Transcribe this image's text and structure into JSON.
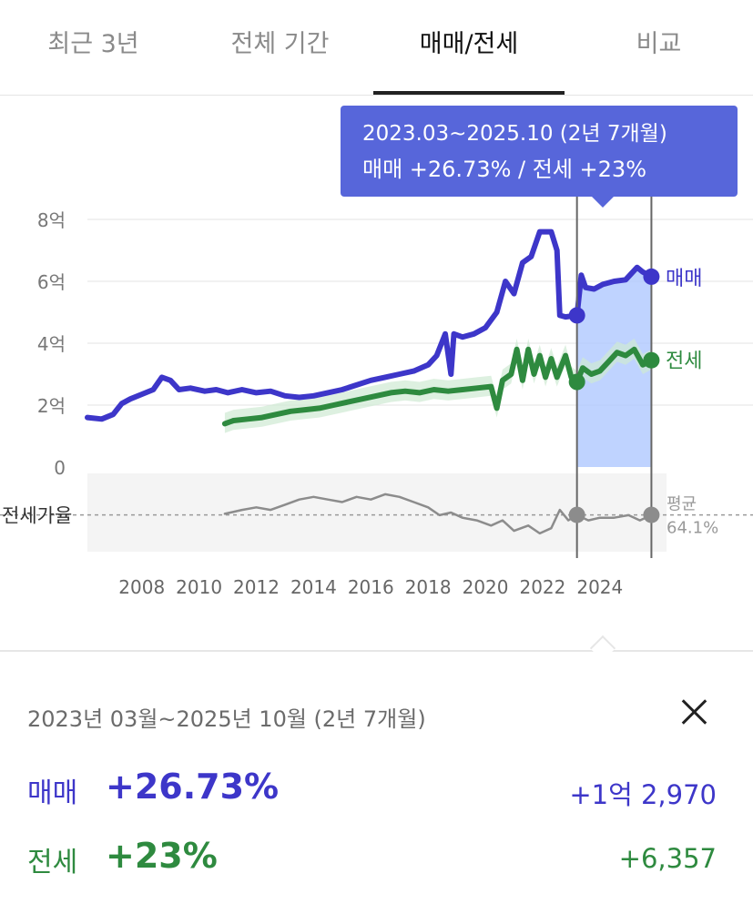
{
  "tabs": [
    {
      "label": "최근 3년",
      "active": false
    },
    {
      "label": "전체 기간",
      "active": false
    },
    {
      "label": "매매/전세",
      "active": true
    },
    {
      "label": "비교",
      "active": false
    }
  ],
  "tooltip": {
    "range": "2023.03~2025.10 (2년 7개월)",
    "summary": "매매 +26.73%  /  전세 +23%"
  },
  "chart_data": {
    "type": "line",
    "y_ticks": [
      "8억",
      "6억",
      "4억",
      "2억",
      "0"
    ],
    "x_ticks": [
      "2008",
      "2010",
      "2012",
      "2014",
      "2016",
      "2018",
      "2020",
      "2022",
      "2024"
    ],
    "ylim": [
      0,
      8
    ],
    "xlim": [
      2006.1,
      2026.2
    ],
    "selection": {
      "start": 2023.2,
      "end": 2025.8
    },
    "colors": {
      "sale": "#3d36c9",
      "jeonse": "#2e8a3f",
      "ratio": "#8c8c8c",
      "selection_fill": "#a9c4ff"
    },
    "series": [
      {
        "name": "매매",
        "points": [
          [
            2006.1,
            1.6
          ],
          [
            2006.6,
            1.55
          ],
          [
            2007.0,
            1.7
          ],
          [
            2007.3,
            2.05
          ],
          [
            2007.6,
            2.2
          ],
          [
            2008.0,
            2.35
          ],
          [
            2008.4,
            2.5
          ],
          [
            2008.7,
            2.9
          ],
          [
            2009.0,
            2.8
          ],
          [
            2009.3,
            2.5
          ],
          [
            2009.7,
            2.55
          ],
          [
            2010.2,
            2.45
          ],
          [
            2010.6,
            2.5
          ],
          [
            2011.0,
            2.4
          ],
          [
            2011.5,
            2.5
          ],
          [
            2012.0,
            2.4
          ],
          [
            2012.5,
            2.45
          ],
          [
            2013.0,
            2.3
          ],
          [
            2013.5,
            2.25
          ],
          [
            2014.0,
            2.3
          ],
          [
            2014.5,
            2.4
          ],
          [
            2015.0,
            2.5
          ],
          [
            2015.5,
            2.65
          ],
          [
            2016.0,
            2.8
          ],
          [
            2016.5,
            2.9
          ],
          [
            2017.0,
            3.0
          ],
          [
            2017.5,
            3.1
          ],
          [
            2018.0,
            3.3
          ],
          [
            2018.3,
            3.6
          ],
          [
            2018.6,
            4.3
          ],
          [
            2018.8,
            3.0
          ],
          [
            2018.9,
            4.3
          ],
          [
            2019.2,
            4.2
          ],
          [
            2019.6,
            4.3
          ],
          [
            2020.0,
            4.5
          ],
          [
            2020.4,
            5.0
          ],
          [
            2020.7,
            6.0
          ],
          [
            2021.0,
            5.6
          ],
          [
            2021.3,
            6.6
          ],
          [
            2021.6,
            6.8
          ],
          [
            2021.9,
            7.6
          ],
          [
            2022.3,
            7.6
          ],
          [
            2022.5,
            7.0
          ],
          [
            2022.6,
            4.9
          ],
          [
            2022.8,
            4.85
          ],
          [
            2023.2,
            4.9
          ],
          [
            2023.35,
            6.2
          ],
          [
            2023.5,
            5.8
          ],
          [
            2023.8,
            5.75
          ],
          [
            2024.1,
            5.9
          ],
          [
            2024.5,
            6.0
          ],
          [
            2024.9,
            6.05
          ],
          [
            2025.3,
            6.45
          ],
          [
            2025.5,
            6.3
          ],
          [
            2025.8,
            6.15
          ]
        ]
      },
      {
        "name": "전세",
        "points": [
          [
            2010.9,
            1.4
          ],
          [
            2011.2,
            1.5
          ],
          [
            2011.7,
            1.55
          ],
          [
            2012.2,
            1.6
          ],
          [
            2012.7,
            1.7
          ],
          [
            2013.2,
            1.8
          ],
          [
            2013.7,
            1.85
          ],
          [
            2014.2,
            1.9
          ],
          [
            2014.7,
            2.0
          ],
          [
            2015.2,
            2.1
          ],
          [
            2015.7,
            2.2
          ],
          [
            2016.2,
            2.3
          ],
          [
            2016.7,
            2.4
          ],
          [
            2017.2,
            2.45
          ],
          [
            2017.7,
            2.4
          ],
          [
            2018.2,
            2.5
          ],
          [
            2018.7,
            2.45
          ],
          [
            2019.2,
            2.5
          ],
          [
            2019.7,
            2.55
          ],
          [
            2020.2,
            2.6
          ],
          [
            2020.4,
            1.9
          ],
          [
            2020.6,
            2.8
          ],
          [
            2020.9,
            3.0
          ],
          [
            2021.1,
            3.8
          ],
          [
            2021.3,
            2.8
          ],
          [
            2021.5,
            3.8
          ],
          [
            2021.7,
            3.0
          ],
          [
            2021.9,
            3.6
          ],
          [
            2022.1,
            2.9
          ],
          [
            2022.3,
            3.5
          ],
          [
            2022.5,
            2.9
          ],
          [
            2022.8,
            3.6
          ],
          [
            2023.0,
            2.9
          ],
          [
            2023.2,
            2.75
          ],
          [
            2023.4,
            3.2
          ],
          [
            2023.7,
            3.0
          ],
          [
            2024.0,
            3.1
          ],
          [
            2024.3,
            3.4
          ],
          [
            2024.6,
            3.7
          ],
          [
            2024.9,
            3.6
          ],
          [
            2025.2,
            3.8
          ],
          [
            2025.5,
            3.3
          ],
          [
            2025.8,
            3.45
          ]
        ]
      }
    ],
    "ratio": {
      "label": "전세가율",
      "average_label": "평균",
      "average_value": "64.1%",
      "points": [
        [
          2010.9,
          64.5
        ],
        [
          2011.5,
          66
        ],
        [
          2012.0,
          67
        ],
        [
          2012.5,
          66
        ],
        [
          2013.0,
          68
        ],
        [
          2013.5,
          70
        ],
        [
          2014.0,
          71
        ],
        [
          2014.5,
          70
        ],
        [
          2015.0,
          69
        ],
        [
          2015.5,
          71
        ],
        [
          2016.0,
          70
        ],
        [
          2016.5,
          72
        ],
        [
          2017.0,
          71
        ],
        [
          2017.5,
          69
        ],
        [
          2018.0,
          67
        ],
        [
          2018.4,
          64
        ],
        [
          2018.8,
          65
        ],
        [
          2019.2,
          63
        ],
        [
          2019.7,
          62
        ],
        [
          2020.2,
          60
        ],
        [
          2020.6,
          62
        ],
        [
          2021.0,
          58
        ],
        [
          2021.5,
          60
        ],
        [
          2021.9,
          57
        ],
        [
          2022.3,
          59
        ],
        [
          2022.6,
          66
        ],
        [
          2022.9,
          62
        ],
        [
          2023.2,
          64
        ],
        [
          2023.6,
          62
        ],
        [
          2024.0,
          63
        ],
        [
          2024.5,
          63
        ],
        [
          2025.0,
          64
        ],
        [
          2025.4,
          62
        ],
        [
          2025.8,
          64
        ]
      ]
    },
    "end_labels": {
      "sale": "매매",
      "jeonse": "전세"
    }
  },
  "summary": {
    "period": "2023년 03월~2025년 10월 (2년 7개월)",
    "rows": [
      {
        "label": "매매",
        "pct": "+26.73%",
        "amount": "+1억 2,970"
      },
      {
        "label": "전세",
        "pct": "+23%",
        "amount": "+6,357"
      }
    ]
  }
}
